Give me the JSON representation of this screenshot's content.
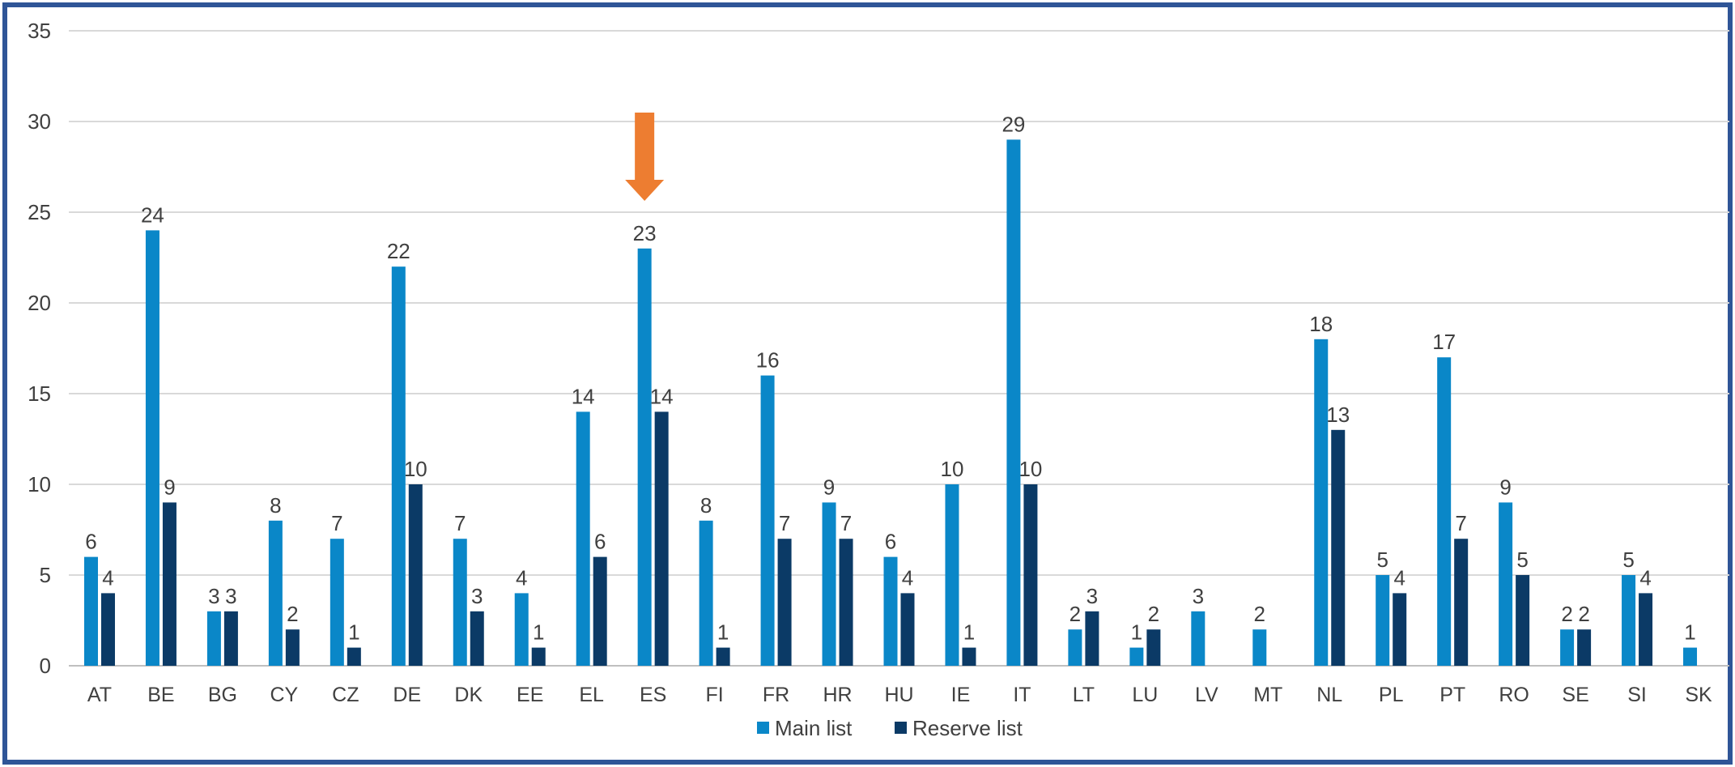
{
  "chart_data": {
    "type": "bar",
    "categories": [
      "AT",
      "BE",
      "BG",
      "CY",
      "CZ",
      "DE",
      "DK",
      "EE",
      "EL",
      "ES",
      "FI",
      "FR",
      "HR",
      "HU",
      "IE",
      "IT",
      "LT",
      "LU",
      "LV",
      "MT",
      "NL",
      "PL",
      "PT",
      "RO",
      "SE",
      "SI",
      "SK"
    ],
    "series": [
      {
        "name": "Main list",
        "color": "#0a87c8",
        "values": [
          6,
          24,
          3,
          8,
          7,
          22,
          7,
          4,
          14,
          23,
          8,
          16,
          9,
          6,
          10,
          29,
          2,
          1,
          3,
          2,
          18,
          5,
          17,
          9,
          2,
          5,
          1
        ]
      },
      {
        "name": "Reserve list",
        "color": "#0b3a66",
        "values": [
          4,
          9,
          3,
          2,
          1,
          10,
          3,
          1,
          6,
          14,
          1,
          7,
          7,
          4,
          1,
          10,
          3,
          2,
          null,
          null,
          13,
          4,
          7,
          5,
          2,
          4,
          null
        ]
      }
    ],
    "ylim": [
      0,
      35
    ],
    "yticks": [
      0,
      5,
      10,
      15,
      20,
      25,
      30,
      35
    ],
    "grid": true,
    "legend": "bottom-center",
    "annotation": {
      "type": "arrow",
      "color": "#ed7d31",
      "category": "ES",
      "direction": "down"
    }
  }
}
